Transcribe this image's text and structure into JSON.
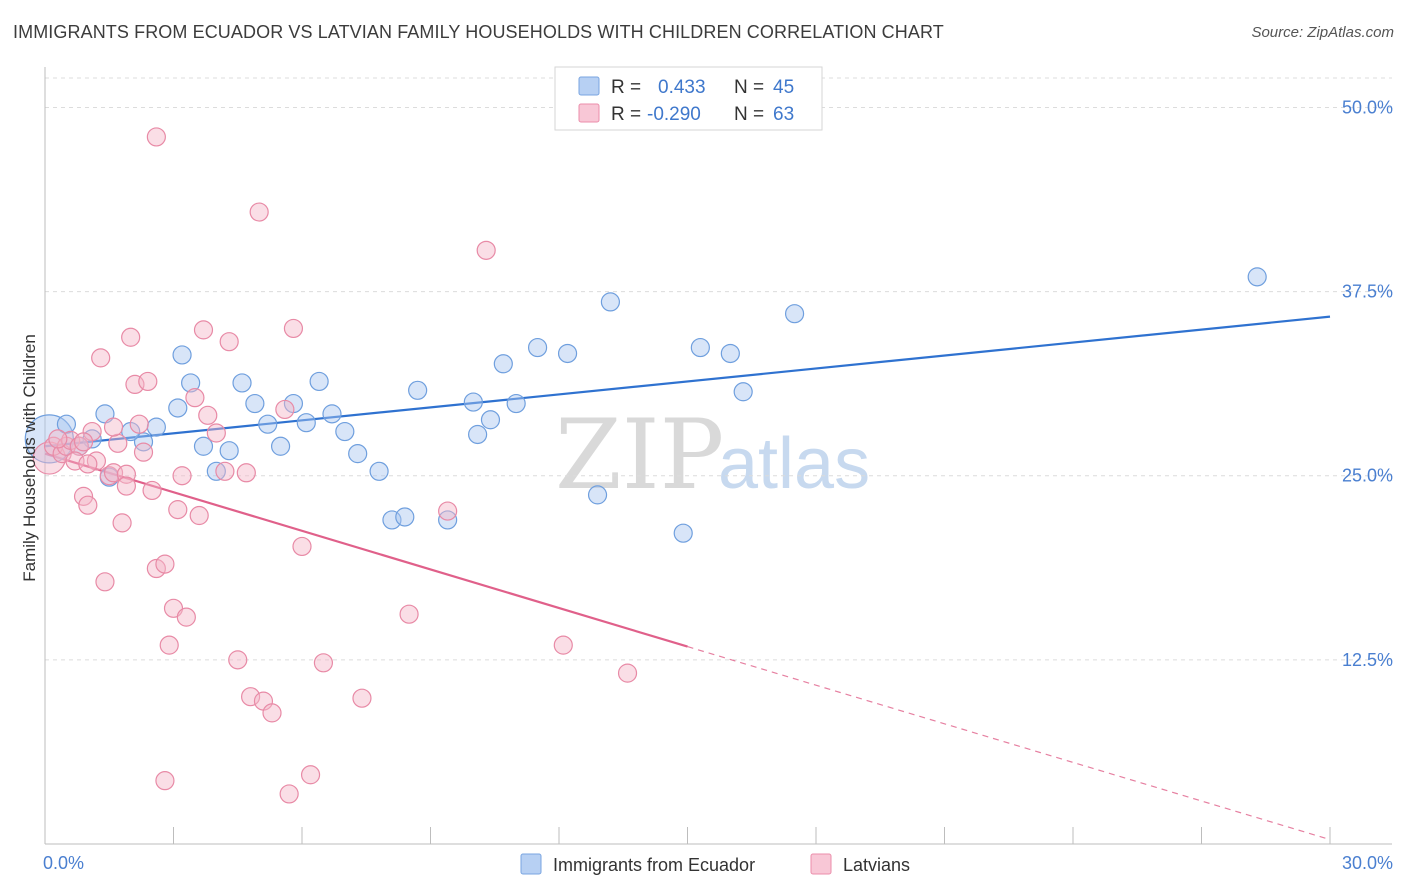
{
  "header": {
    "title": "IMMIGRANTS FROM ECUADOR VS LATVIAN FAMILY HOUSEHOLDS WITH CHILDREN CORRELATION CHART",
    "source": "Source: ZipAtlas.com"
  },
  "watermark": {
    "zip": "ZIP",
    "atlas": "atlas"
  },
  "legend": {
    "rows": [
      {
        "r_label": "R = ",
        "r_value": "0.433",
        "n_label": "N = ",
        "n_value": "45",
        "color": "#a9c6ef"
      },
      {
        "r_label": "R = ",
        "r_value": "-0.290",
        "n_label": "N = ",
        "n_value": "63",
        "color": "#f5b6c8"
      }
    ]
  },
  "chart_data": {
    "type": "scatter",
    "title": "IMMIGRANTS FROM ECUADOR VS LATVIAN FAMILY HOUSEHOLDS WITH CHILDREN CORRELATION CHART",
    "xlabel": "",
    "ylabel": "Family Households with Children",
    "xlim": [
      0,
      30
    ],
    "ylim": [
      0,
      52
    ],
    "x_tick_labels": [
      "0.0%",
      "30.0%"
    ],
    "y_ticks": [
      12.5,
      25.0,
      37.5,
      50.0
    ],
    "y_tick_labels": [
      "12.5%",
      "25.0%",
      "37.5%",
      "50.0%"
    ],
    "grid": "horizontal dashed",
    "legend_position": "top-center",
    "series": [
      {
        "name": "Immigrants from Ecuador",
        "color": "#a9c6ef",
        "edge": "#6f9fde",
        "trend": {
          "x": [
            0,
            30
          ],
          "y": [
            27.0,
            35.8
          ],
          "color": "#2f72d0",
          "dashed_from": null
        },
        "points": [
          [
            0.1,
            27.5,
            24
          ],
          [
            0.5,
            28.5,
            9
          ],
          [
            1.1,
            27.5,
            9
          ],
          [
            1.4,
            29.2,
            9
          ],
          [
            1.5,
            24.9,
            9
          ],
          [
            2.3,
            27.3,
            9
          ],
          [
            2.6,
            28.3,
            9
          ],
          [
            3.1,
            29.6,
            9
          ],
          [
            3.2,
            33.2,
            9
          ],
          [
            3.4,
            31.3,
            9
          ],
          [
            3.7,
            27.0,
            9
          ],
          [
            4.0,
            25.3,
            9
          ],
          [
            4.3,
            26.7,
            9
          ],
          [
            4.6,
            31.3,
            9
          ],
          [
            4.9,
            29.9,
            9
          ],
          [
            5.2,
            28.5,
            9
          ],
          [
            5.5,
            27.0,
            9
          ],
          [
            5.8,
            29.9,
            9
          ],
          [
            6.1,
            28.6,
            9
          ],
          [
            6.4,
            31.4,
            9
          ],
          [
            6.7,
            29.2,
            9
          ],
          [
            7.0,
            28.0,
            9
          ],
          [
            7.3,
            26.5,
            9
          ],
          [
            7.8,
            25.3,
            9
          ],
          [
            8.1,
            22.0,
            9
          ],
          [
            8.4,
            22.2,
            9
          ],
          [
            8.7,
            30.8,
            9
          ],
          [
            9.4,
            22.0,
            9
          ],
          [
            10.0,
            30.0,
            9
          ],
          [
            10.1,
            27.8,
            9
          ],
          [
            10.4,
            28.8,
            9
          ],
          [
            10.7,
            32.6,
            9
          ],
          [
            11.0,
            29.9,
            9
          ],
          [
            11.5,
            33.7,
            9
          ],
          [
            12.2,
            33.3,
            9
          ],
          [
            12.9,
            23.7,
            9
          ],
          [
            13.2,
            36.8,
            9
          ],
          [
            14.9,
            21.1,
            9
          ],
          [
            15.3,
            33.7,
            9
          ],
          [
            16.0,
            33.3,
            9
          ],
          [
            16.3,
            30.7,
            9
          ],
          [
            17.5,
            36.0,
            9
          ],
          [
            28.3,
            38.5,
            9
          ],
          [
            0.8,
            27.0,
            9
          ],
          [
            2.0,
            28.0,
            9
          ]
        ]
      },
      {
        "name": "Latvians",
        "color": "#f5b6c8",
        "edge": "#e88aa6",
        "trend": {
          "x": [
            0,
            30
          ],
          "y": [
            26.5,
            0.3
          ],
          "color": "#e0608a",
          "dashed_from": 15.0
        },
        "points": [
          [
            0.1,
            26.2,
            16
          ],
          [
            0.2,
            27.0,
            9
          ],
          [
            0.4,
            26.5,
            9
          ],
          [
            0.5,
            27.0,
            9
          ],
          [
            0.6,
            27.4,
            9
          ],
          [
            0.8,
            27.0,
            9
          ],
          [
            0.9,
            23.6,
            9
          ],
          [
            1.0,
            23.0,
            9
          ],
          [
            1.1,
            28.0,
            9
          ],
          [
            1.2,
            26.0,
            9
          ],
          [
            1.3,
            33.0,
            9
          ],
          [
            1.5,
            25.0,
            9
          ],
          [
            1.6,
            25.2,
            9
          ],
          [
            1.7,
            27.2,
            9
          ],
          [
            1.8,
            21.8,
            9
          ],
          [
            1.9,
            25.1,
            9
          ],
          [
            2.0,
            34.4,
            9
          ],
          [
            2.1,
            31.2,
            9
          ],
          [
            2.2,
            28.5,
            9
          ],
          [
            2.4,
            31.4,
            9
          ],
          [
            2.5,
            24.0,
            9
          ],
          [
            2.6,
            18.7,
            9
          ],
          [
            2.8,
            19.0,
            9
          ],
          [
            2.9,
            13.5,
            9
          ],
          [
            3.0,
            16.0,
            9
          ],
          [
            3.1,
            22.7,
            9
          ],
          [
            3.3,
            15.4,
            9
          ],
          [
            3.5,
            30.3,
            9
          ],
          [
            3.6,
            22.3,
            9
          ],
          [
            3.7,
            34.9,
            9
          ],
          [
            3.8,
            29.1,
            9
          ],
          [
            4.0,
            27.9,
            9
          ],
          [
            4.3,
            34.1,
            9
          ],
          [
            4.5,
            12.5,
            9
          ],
          [
            4.7,
            25.2,
            9
          ],
          [
            4.8,
            10.0,
            9
          ],
          [
            5.0,
            42.9,
            9
          ],
          [
            5.1,
            9.7,
            9
          ],
          [
            5.3,
            8.9,
            9
          ],
          [
            5.6,
            29.5,
            9
          ],
          [
            5.7,
            3.4,
            9
          ],
          [
            5.8,
            35.0,
            9
          ],
          [
            6.0,
            20.2,
            9
          ],
          [
            6.2,
            4.7,
            9
          ],
          [
            6.5,
            12.3,
            9
          ],
          [
            7.4,
            9.9,
            9
          ],
          [
            8.5,
            15.6,
            9
          ],
          [
            9.4,
            22.6,
            9
          ],
          [
            10.3,
            40.3,
            9
          ],
          [
            12.1,
            13.5,
            9
          ],
          [
            13.6,
            11.6,
            9
          ],
          [
            2.6,
            48.0,
            9
          ],
          [
            1.4,
            17.8,
            9
          ],
          [
            0.7,
            26.0,
            9
          ],
          [
            1.0,
            25.8,
            9
          ],
          [
            2.3,
            26.6,
            9
          ],
          [
            1.9,
            24.3,
            9
          ],
          [
            3.2,
            25.0,
            9
          ],
          [
            0.3,
            27.5,
            9
          ],
          [
            1.6,
            28.3,
            9
          ],
          [
            2.8,
            4.3,
            9
          ],
          [
            4.2,
            25.3,
            9
          ],
          [
            0.9,
            27.3,
            9
          ]
        ]
      }
    ]
  }
}
